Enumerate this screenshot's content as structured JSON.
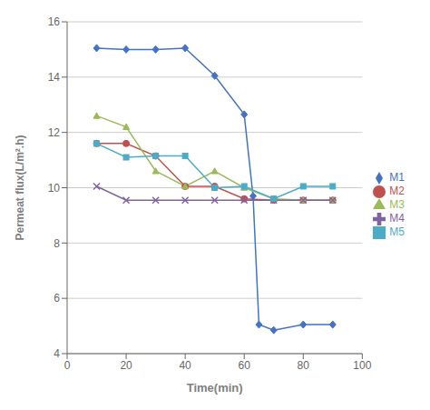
{
  "chart_data": {
    "type": "line",
    "xlabel": "Time(min)",
    "ylabel": "Permeat flux(L/m².h)",
    "series": [
      {
        "name": "M1",
        "color": "#4472C4",
        "marker": "diamond",
        "x": [
          10,
          20,
          30,
          40,
          50,
          60,
          63,
          65,
          70,
          80,
          90
        ],
        "values": [
          15.05,
          15.0,
          15.0,
          15.05,
          14.05,
          12.65,
          9.7,
          5.05,
          4.85,
          5.05,
          5.05
        ]
      },
      {
        "name": "M2",
        "color": "#C0504D",
        "marker": "circle",
        "x": [
          10,
          20,
          30,
          40,
          50,
          60,
          70,
          80,
          90
        ],
        "values": [
          11.6,
          11.6,
          11.15,
          10.05,
          10.05,
          9.6,
          9.55,
          9.55,
          9.55
        ]
      },
      {
        "name": "M3",
        "color": "#9BBB59",
        "marker": "triangle",
        "x": [
          10,
          20,
          30,
          40,
          50,
          60,
          70,
          80,
          90
        ],
        "values": [
          12.6,
          12.2,
          10.6,
          10.05,
          10.6,
          10.0,
          9.6,
          9.55,
          9.55
        ]
      },
      {
        "name": "M4",
        "color": "#8064A2",
        "marker": "x",
        "x": [
          10,
          20,
          30,
          40,
          50,
          60,
          70,
          80,
          90
        ],
        "values": [
          10.05,
          9.55,
          9.55,
          9.55,
          9.55,
          9.55,
          9.55,
          9.55,
          9.55
        ]
      },
      {
        "name": "M5",
        "color": "#4BACC6",
        "marker": "square",
        "x": [
          10,
          20,
          30,
          40,
          50,
          60,
          70,
          80,
          90
        ],
        "values": [
          11.6,
          11.1,
          11.15,
          11.15,
          10.0,
          10.05,
          9.6,
          10.05,
          10.05
        ]
      }
    ],
    "xlim": [
      0,
      100
    ],
    "ylim": [
      4,
      16
    ],
    "xticks": [
      0,
      20,
      40,
      60,
      80,
      100
    ],
    "yticks": [
      4,
      6,
      8,
      10,
      12,
      14,
      16
    ],
    "grid": "y",
    "legend": "right"
  }
}
